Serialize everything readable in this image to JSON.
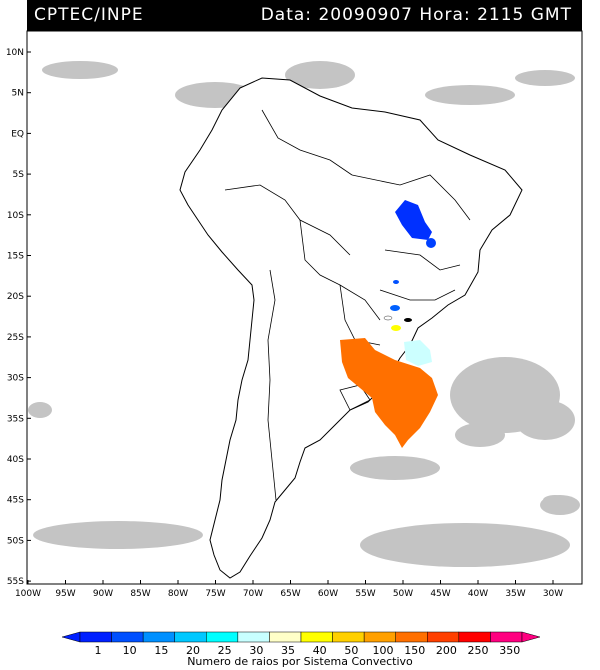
{
  "header": {
    "agency": "CPTEC/INPE",
    "datetime": "Data: 20090907 Hora: 2115 GMT"
  },
  "map": {
    "lat_labels": [
      "10N",
      "5N",
      "EQ",
      "5S",
      "10S",
      "15S",
      "20S",
      "25S",
      "30S",
      "35S",
      "40S",
      "45S",
      "50S",
      "55S"
    ],
    "lon_labels": [
      "100W",
      "95W",
      "90W",
      "85W",
      "80W",
      "75W",
      "70W",
      "65W",
      "60W",
      "55W",
      "50W",
      "45W",
      "40W",
      "35W",
      "30W"
    ]
  },
  "colorbar": {
    "labels": [
      "1",
      "10",
      "15",
      "20",
      "25",
      "30",
      "35",
      "40",
      "50",
      "100",
      "150",
      "200",
      "250",
      "350"
    ],
    "colors": [
      "#0020ff",
      "#0050ff",
      "#0090ff",
      "#00c8ff",
      "#00ffff",
      "#c8ffff",
      "#ffffc8",
      "#ffff00",
      "#ffd000",
      "#ffa000",
      "#ff7000",
      "#ff4000",
      "#ff0000",
      "#ff0080"
    ],
    "title": "Numero de raios por Sistema Convectivo"
  }
}
